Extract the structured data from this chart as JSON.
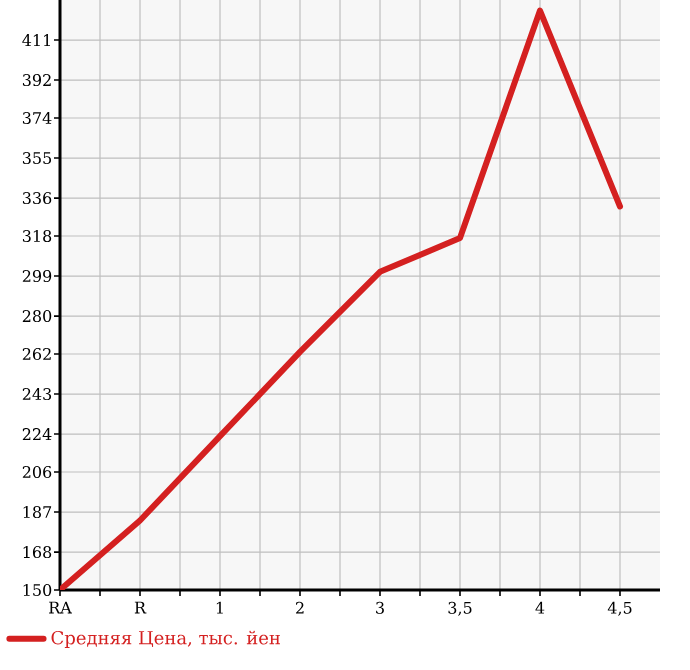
{
  "chart_data": {
    "type": "line",
    "categories": [
      "RA",
      "R",
      "1",
      "2",
      "3",
      "3,5",
      "4",
      "4,5"
    ],
    "series": [
      {
        "name": "Средняя Цена, тыс. йен",
        "color": "#d42020",
        "values": [
          150,
          183,
          223,
          263,
          301,
          317,
          425,
          332
        ]
      }
    ],
    "ylim": [
      150,
      430
    ],
    "yticks": [
      150,
      168,
      187,
      206,
      224,
      243,
      262,
      280,
      299,
      318,
      336,
      355,
      374,
      392,
      411
    ],
    "grid": true,
    "legend": "bottom left",
    "marker": "none",
    "line_style": "solid"
  }
}
